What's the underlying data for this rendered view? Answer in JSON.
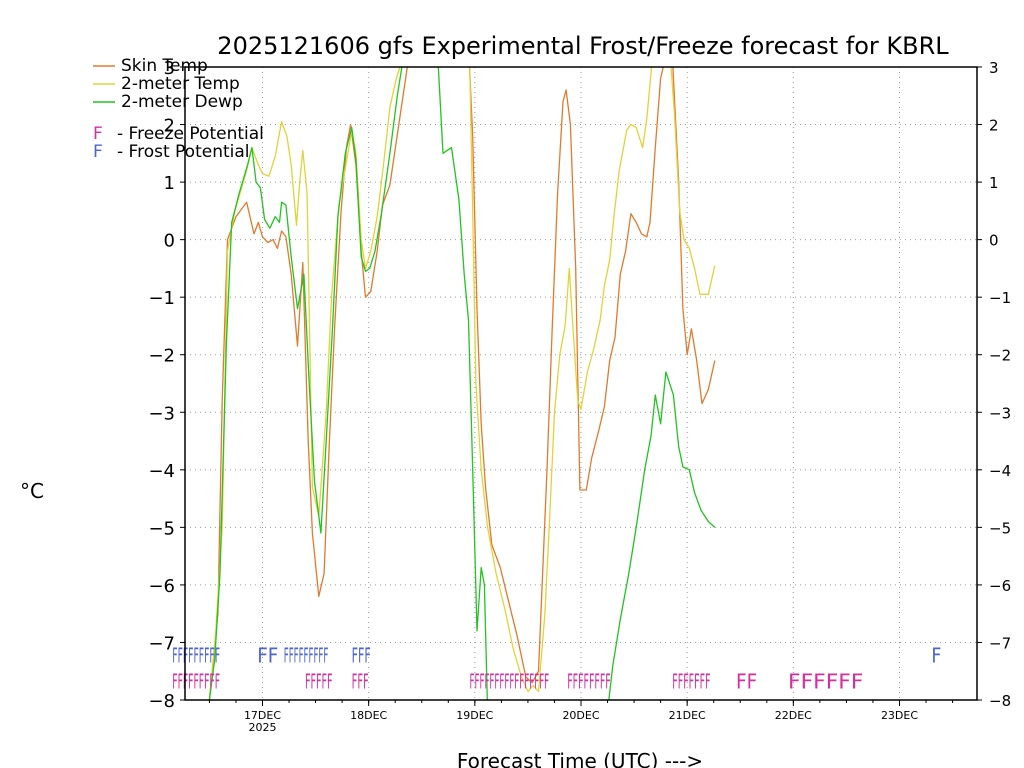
{
  "chart_data": {
    "type": "line",
    "title": "2025121606 gfs Experimental Frost/Freeze forecast for KBRL",
    "ylabel": "°C",
    "xlabel": "Forecast Time (UTC) --->",
    "ylim": [
      -8,
      3
    ],
    "xlim": [
      -0.73,
      6.73
    ],
    "y_ticks": [
      -8,
      -7,
      -6,
      -5,
      -4,
      -3,
      -2,
      -1,
      0,
      1,
      2,
      3
    ],
    "y_tick_labels": [
      "−8",
      "−7",
      "−6",
      "−5",
      "−4",
      "−3",
      "−2",
      "−1",
      "0",
      "1",
      "2",
      "3"
    ],
    "x_ticks": [
      {
        "t": 0,
        "label": "17DEC",
        "sub": "2025"
      },
      {
        "t": 1,
        "label": "18DEC",
        "sub": ""
      },
      {
        "t": 2,
        "label": "19DEC",
        "sub": ""
      },
      {
        "t": 3,
        "label": "20DEC",
        "sub": ""
      },
      {
        "t": 4,
        "label": "21DEC",
        "sub": ""
      },
      {
        "t": 5,
        "label": "22DEC",
        "sub": ""
      },
      {
        "t": 6,
        "label": "23DEC",
        "sub": ""
      }
    ],
    "legend": [
      {
        "label": "Skin Temp",
        "color": "#e07a2e"
      },
      {
        "label": "2-meter Temp",
        "color": "#e2d23a"
      },
      {
        "label": "2-meter Dewp",
        "color": "#22c322"
      },
      {
        "label": "F - Freeze Potential",
        "color": "#d42ea0"
      },
      {
        "label": "F - Frost Potential",
        "color": "#4a63d6"
      }
    ],
    "series": [
      {
        "name": "Skin Temp",
        "color": "#e07a2e",
        "points": [
          [
            -0.5,
            -8
          ],
          [
            -0.42,
            -6.5
          ],
          [
            -0.38,
            -2.8
          ],
          [
            -0.33,
            0
          ],
          [
            -0.25,
            0.4
          ],
          [
            -0.15,
            0.65
          ],
          [
            -0.08,
            0.1
          ],
          [
            -0.04,
            0.3
          ],
          [
            0,
            0.05
          ],
          [
            0.05,
            -0.05
          ],
          [
            0.1,
            0.0
          ],
          [
            0.14,
            -0.15
          ],
          [
            0.18,
            0.15
          ],
          [
            0.22,
            0.05
          ],
          [
            0.27,
            -0.6
          ],
          [
            0.33,
            -1.85
          ],
          [
            0.38,
            -0.4
          ],
          [
            0.43,
            -3.5
          ],
          [
            0.47,
            -5.1
          ],
          [
            0.53,
            -6.2
          ],
          [
            0.58,
            -5.8
          ],
          [
            0.63,
            -3.5
          ],
          [
            0.68,
            -1.5
          ],
          [
            0.74,
            0.5
          ],
          [
            0.79,
            1.6
          ],
          [
            0.83,
            2.0
          ],
          [
            0.88,
            1.3
          ],
          [
            0.93,
            -0.2
          ],
          [
            0.97,
            -1.0
          ],
          [
            1.02,
            -0.9
          ],
          [
            1.08,
            -0.2
          ],
          [
            1.13,
            0.6
          ],
          [
            1.2,
            0.95
          ],
          [
            1.3,
            2.2
          ],
          [
            1.38,
            3.2
          ],
          [
            1.46,
            3.4
          ],
          [
            1.54,
            3.3
          ],
          [
            1.6,
            3.2
          ],
          [
            1.75,
            3.1
          ],
          [
            1.95,
            3.0
          ],
          [
            1.98,
            1.8
          ],
          [
            2.02,
            -1.2
          ],
          [
            2.06,
            -3.2
          ],
          [
            2.1,
            -4.3
          ],
          [
            2.16,
            -5.3
          ],
          [
            2.24,
            -5.7
          ],
          [
            2.32,
            -6.3
          ],
          [
            2.4,
            -6.9
          ],
          [
            2.48,
            -7.6
          ],
          [
            2.54,
            -7.7
          ],
          [
            2.6,
            -7.5
          ],
          [
            2.68,
            -4.0
          ],
          [
            2.73,
            -1.5
          ],
          [
            2.78,
            0.8
          ],
          [
            2.83,
            2.4
          ],
          [
            2.86,
            2.6
          ],
          [
            2.9,
            2.0
          ],
          [
            2.95,
            -0.5
          ],
          [
            2.99,
            -4.35
          ],
          [
            3.05,
            -4.35
          ],
          [
            3.1,
            -3.8
          ],
          [
            3.17,
            -3.3
          ],
          [
            3.22,
            -2.9
          ],
          [
            3.27,
            -2.1
          ],
          [
            3.32,
            -1.7
          ],
          [
            3.37,
            -0.6
          ],
          [
            3.42,
            -0.2
          ],
          [
            3.47,
            0.45
          ],
          [
            3.52,
            0.3
          ],
          [
            3.57,
            0.1
          ],
          [
            3.62,
            0.05
          ],
          [
            3.65,
            0.3
          ],
          [
            3.7,
            1.6
          ],
          [
            3.75,
            2.8
          ],
          [
            3.8,
            3.2
          ],
          [
            3.86,
            3.2
          ],
          [
            3.92,
            1.0
          ],
          [
            3.96,
            -1.2
          ],
          [
            4.0,
            -2.0
          ],
          [
            4.04,
            -1.55
          ],
          [
            4.09,
            -2.1
          ],
          [
            4.14,
            -2.85
          ],
          [
            4.2,
            -2.6
          ],
          [
            4.26,
            -2.1
          ]
        ]
      },
      {
        "name": "2-meter Temp",
        "color": "#e2d23a",
        "points": [
          [
            -0.5,
            -8
          ],
          [
            -0.44,
            -6.8
          ],
          [
            -0.38,
            -5.0
          ],
          [
            -0.33,
            -0.2
          ],
          [
            -0.26,
            0.5
          ],
          [
            -0.15,
            1.2
          ],
          [
            -0.1,
            1.6
          ],
          [
            -0.04,
            1.3
          ],
          [
            0,
            1.15
          ],
          [
            0.06,
            1.1
          ],
          [
            0.12,
            1.45
          ],
          [
            0.18,
            2.05
          ],
          [
            0.23,
            1.8
          ],
          [
            0.27,
            1.3
          ],
          [
            0.32,
            0.25
          ],
          [
            0.35,
            1.0
          ],
          [
            0.38,
            1.55
          ],
          [
            0.42,
            0.8
          ],
          [
            0.47,
            -4.3
          ],
          [
            0.53,
            -4.8
          ],
          [
            0.6,
            -3.0
          ],
          [
            0.65,
            -1.0
          ],
          [
            0.72,
            0.6
          ],
          [
            0.8,
            1.45
          ],
          [
            0.84,
            1.9
          ],
          [
            0.88,
            1.5
          ],
          [
            0.93,
            0.0
          ],
          [
            0.97,
            -0.5
          ],
          [
            1.02,
            -0.2
          ],
          [
            1.08,
            0.4
          ],
          [
            1.14,
            1.3
          ],
          [
            1.2,
            2.3
          ],
          [
            1.26,
            2.8
          ],
          [
            1.33,
            3.2
          ],
          [
            1.95,
            3.2
          ],
          [
            1.98,
            0.5
          ],
          [
            2.01,
            -2.5
          ],
          [
            2.06,
            -4.0
          ],
          [
            2.12,
            -5.0
          ],
          [
            2.2,
            -5.8
          ],
          [
            2.28,
            -6.4
          ],
          [
            2.36,
            -7.1
          ],
          [
            2.44,
            -7.6
          ],
          [
            2.5,
            -7.85
          ],
          [
            2.55,
            -7.75
          ],
          [
            2.6,
            -7.85
          ],
          [
            2.66,
            -6.5
          ],
          [
            2.7,
            -5.0
          ],
          [
            2.75,
            -3.0
          ],
          [
            2.8,
            -2.0
          ],
          [
            2.85,
            -1.5
          ],
          [
            2.89,
            -0.5
          ],
          [
            2.93,
            -1.7
          ],
          [
            2.97,
            -2.8
          ],
          [
            3.0,
            -2.95
          ],
          [
            3.06,
            -2.3
          ],
          [
            3.12,
            -1.9
          ],
          [
            3.18,
            -1.4
          ],
          [
            3.22,
            -0.8
          ],
          [
            3.27,
            -0.35
          ],
          [
            3.31,
            0.4
          ],
          [
            3.36,
            1.2
          ],
          [
            3.43,
            1.9
          ],
          [
            3.47,
            2.0
          ],
          [
            3.52,
            1.95
          ],
          [
            3.58,
            1.6
          ],
          [
            3.62,
            2.1
          ],
          [
            3.67,
            3.1
          ],
          [
            3.72,
            3.2
          ],
          [
            3.84,
            3.2
          ],
          [
            3.88,
            2.2
          ],
          [
            3.93,
            0.5
          ],
          [
            3.97,
            0.0
          ],
          [
            4.02,
            -0.15
          ],
          [
            4.07,
            -0.5
          ],
          [
            4.12,
            -0.95
          ],
          [
            4.2,
            -0.95
          ],
          [
            4.26,
            -0.45
          ]
        ]
      },
      {
        "name": "2-meter Dewp",
        "color": "#22c322",
        "points": [
          [
            -0.5,
            -8
          ],
          [
            -0.45,
            -7.3
          ],
          [
            -0.4,
            -5.8
          ],
          [
            -0.34,
            -1.8
          ],
          [
            -0.29,
            0.3
          ],
          [
            -0.22,
            0.8
          ],
          [
            -0.14,
            1.3
          ],
          [
            -0.1,
            1.6
          ],
          [
            -0.06,
            1.0
          ],
          [
            -0.02,
            0.9
          ],
          [
            0.02,
            0.35
          ],
          [
            0.07,
            0.2
          ],
          [
            0.12,
            0.4
          ],
          [
            0.16,
            0.3
          ],
          [
            0.18,
            0.65
          ],
          [
            0.22,
            0.6
          ],
          [
            0.27,
            -0.3
          ],
          [
            0.33,
            -1.2
          ],
          [
            0.39,
            -0.6
          ],
          [
            0.44,
            -2.5
          ],
          [
            0.49,
            -4.2
          ],
          [
            0.55,
            -5.1
          ],
          [
            0.6,
            -3.5
          ],
          [
            0.66,
            -1.5
          ],
          [
            0.71,
            0.4
          ],
          [
            0.78,
            1.5
          ],
          [
            0.84,
            1.95
          ],
          [
            0.88,
            1.4
          ],
          [
            0.93,
            -0.3
          ],
          [
            0.97,
            -0.55
          ],
          [
            1.01,
            -0.5
          ],
          [
            1.06,
            -0.2
          ],
          [
            1.12,
            0.45
          ],
          [
            1.2,
            1.5
          ],
          [
            1.27,
            2.5
          ],
          [
            1.33,
            3.2
          ],
          [
            1.65,
            3.2
          ],
          [
            1.7,
            1.5
          ],
          [
            1.78,
            1.6
          ],
          [
            1.85,
            0.7
          ],
          [
            1.9,
            -0.6
          ],
          [
            1.94,
            -1.4
          ],
          [
            1.98,
            -4.0
          ],
          [
            2.02,
            -6.8
          ],
          [
            2.06,
            -5.7
          ],
          [
            2.09,
            -6.0
          ],
          [
            2.12,
            -8.2
          ],
          [
            3.25,
            -8.2
          ],
          [
            3.3,
            -7.4
          ],
          [
            3.37,
            -6.6
          ],
          [
            3.45,
            -5.8
          ],
          [
            3.52,
            -5.0
          ],
          [
            3.6,
            -4.0
          ],
          [
            3.66,
            -3.4
          ],
          [
            3.7,
            -2.7
          ],
          [
            3.75,
            -3.2
          ],
          [
            3.8,
            -2.3
          ],
          [
            3.87,
            -2.7
          ],
          [
            3.92,
            -3.6
          ],
          [
            3.96,
            -3.95
          ],
          [
            4.02,
            -4.0
          ],
          [
            4.07,
            -4.4
          ],
          [
            4.13,
            -4.7
          ],
          [
            4.2,
            -4.9
          ],
          [
            4.26,
            -5.0
          ]
        ]
      }
    ],
    "freeze_markers": [
      {
        "t0": -0.85,
        "t1": -0.4,
        "text": "FFFFFFFFF"
      },
      {
        "t0": 0.4,
        "t1": 0.66,
        "text": "FFFFF"
      },
      {
        "t0": 0.84,
        "t1": 1.0,
        "text": "FFF"
      },
      {
        "t0": 1.95,
        "t1": 2.7,
        "text": "FFFFFFFFFFFFFFFF"
      },
      {
        "t0": 2.87,
        "t1": 3.28,
        "text": "FFFFFFFF"
      },
      {
        "t0": 3.86,
        "t1": 4.22,
        "text": "FFFFFFF"
      },
      {
        "t0": 4.46,
        "t1": 4.66,
        "text": "FF"
      },
      {
        "t0": 4.95,
        "t1": 5.66,
        "text": "FFFFFF"
      }
    ],
    "frost_markers": [
      {
        "t0": -0.85,
        "t1": -0.4,
        "text": "FFFFFFFFF"
      },
      {
        "t0": -0.05,
        "t1": 0.15,
        "text": "FF"
      },
      {
        "t0": 0.2,
        "t1": 0.62,
        "text": "FFFFFFFFF"
      },
      {
        "t0": 0.84,
        "t1": 1.02,
        "text": "FFF"
      },
      {
        "t0": 6.3,
        "t1": 6.35,
        "text": "F"
      }
    ]
  }
}
